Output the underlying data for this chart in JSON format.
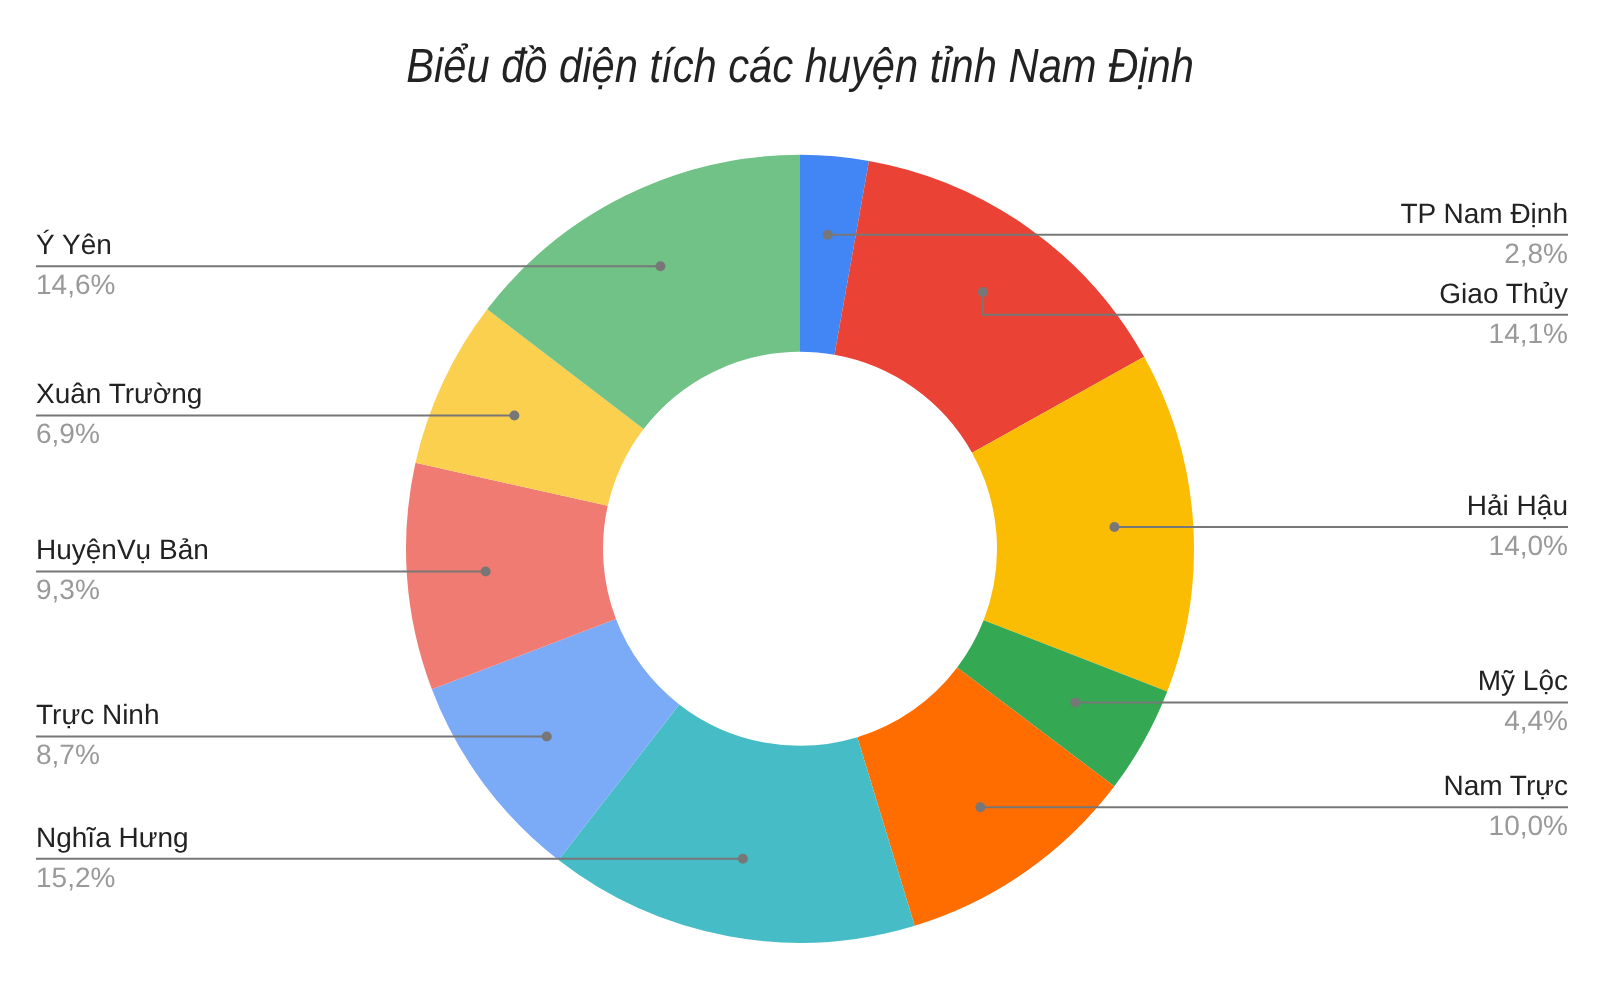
{
  "chart_data": {
    "type": "donut",
    "title": "Biểu đồ diện tích các huyện tỉnh Nam Định",
    "categories": [
      "TP Nam Định",
      "Giao Thủy",
      "Hải Hậu",
      "Mỹ Lộc",
      "Nam Trực",
      "Nghĩa Hưng",
      "Trực Ninh",
      "HuyệnVụ Bản",
      "Xuân Trường",
      "Ý Yên"
    ],
    "values": [
      2.8,
      14.1,
      14.0,
      4.4,
      10.0,
      15.2,
      8.7,
      9.3,
      6.9,
      14.6
    ],
    "value_labels": [
      "2,8%",
      "14,1%",
      "14,0%",
      "4,4%",
      "10,0%",
      "15,2%",
      "8,7%",
      "9,3%",
      "6,9%",
      "14,6%"
    ],
    "colors": [
      "#4285f4",
      "#ea4335",
      "#fbbc04",
      "#34a853",
      "#ff6d01",
      "#46bdc6",
      "#7baaf7",
      "#f07b72",
      "#fcd04f",
      "#71c287"
    ],
    "legend": false
  }
}
